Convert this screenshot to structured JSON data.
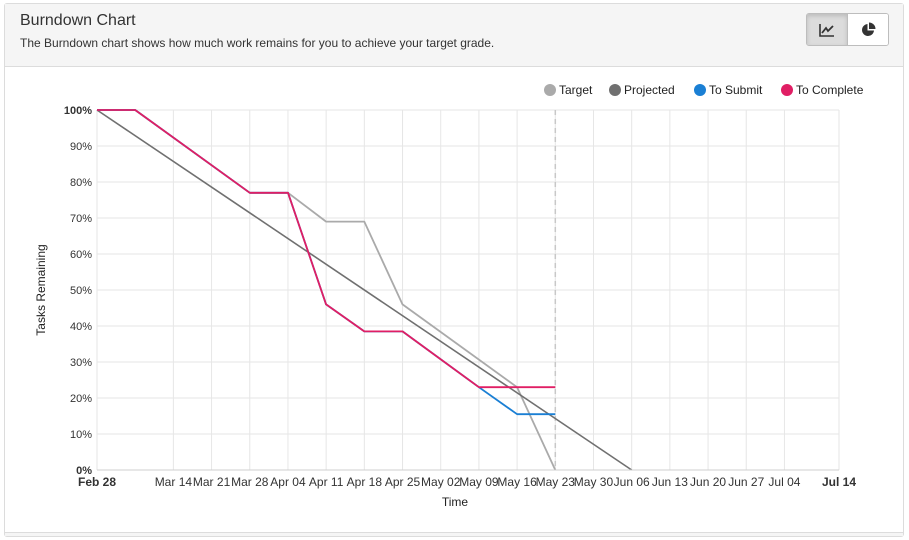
{
  "header": {
    "title": "Burndown Chart",
    "subtitle": "The Burndown chart shows how much work remains for you to achieve your target grade."
  },
  "toolbar": {
    "line_view_icon": "line-chart-icon",
    "pie_view_icon": "pie-chart-icon"
  },
  "chart_data": {
    "type": "line",
    "xlabel": "Time",
    "ylabel": "Tasks Remaining",
    "x_ticks": [
      "Feb 28",
      "Mar 14",
      "Mar 21",
      "Mar 28",
      "Apr 04",
      "Apr 11",
      "Apr 18",
      "Apr 25",
      "May 02",
      "May 09",
      "May 16",
      "May 23",
      "May 30",
      "Jun 06",
      "Jun 13",
      "Jun 20",
      "Jun 27",
      "Jul 04",
      "Jul 14"
    ],
    "y_ticks": [
      "0%",
      "10%",
      "20%",
      "30%",
      "40%",
      "50%",
      "60%",
      "70%",
      "80%",
      "90%",
      "100%"
    ],
    "ylim": [
      0,
      100
    ],
    "today": "May 23",
    "legend": {
      "placement": "top-right"
    },
    "series": [
      {
        "name": "Target",
        "color": "#aaaaaa",
        "points": [
          [
            "Feb 28",
            100
          ],
          [
            "Mar 07",
            100
          ],
          [
            "Mar 28",
            77
          ],
          [
            "Apr 04",
            77
          ],
          [
            "Apr 11",
            69
          ],
          [
            "Apr 18",
            69
          ],
          [
            "Apr 25",
            46
          ],
          [
            "May 16",
            23
          ],
          [
            "May 23",
            0
          ]
        ]
      },
      {
        "name": "Projected",
        "color": "#707070",
        "points": [
          [
            "Feb 28",
            100
          ],
          [
            "Jun 06",
            0
          ]
        ]
      },
      {
        "name": "To Submit",
        "color": "#1a7fd4",
        "points": [
          [
            "Feb 28",
            100
          ],
          [
            "Mar 07",
            100
          ],
          [
            "Mar 28",
            77
          ],
          [
            "Apr 04",
            77
          ],
          [
            "Apr 11",
            46
          ],
          [
            "Apr 18",
            38.5
          ],
          [
            "Apr 25",
            38.5
          ],
          [
            "May 09",
            23
          ],
          [
            "May 16",
            15.5
          ],
          [
            "May 23",
            15.5
          ]
        ]
      },
      {
        "name": "To Complete",
        "color": "#e01e64",
        "points": [
          [
            "Feb 28",
            100
          ],
          [
            "Mar 07",
            100
          ],
          [
            "Mar 28",
            77
          ],
          [
            "Apr 04",
            77
          ],
          [
            "Apr 11",
            46
          ],
          [
            "Apr 18",
            38.5
          ],
          [
            "Apr 25",
            38.5
          ],
          [
            "May 09",
            23
          ],
          [
            "May 16",
            23
          ],
          [
            "May 23",
            23
          ]
        ]
      }
    ]
  }
}
